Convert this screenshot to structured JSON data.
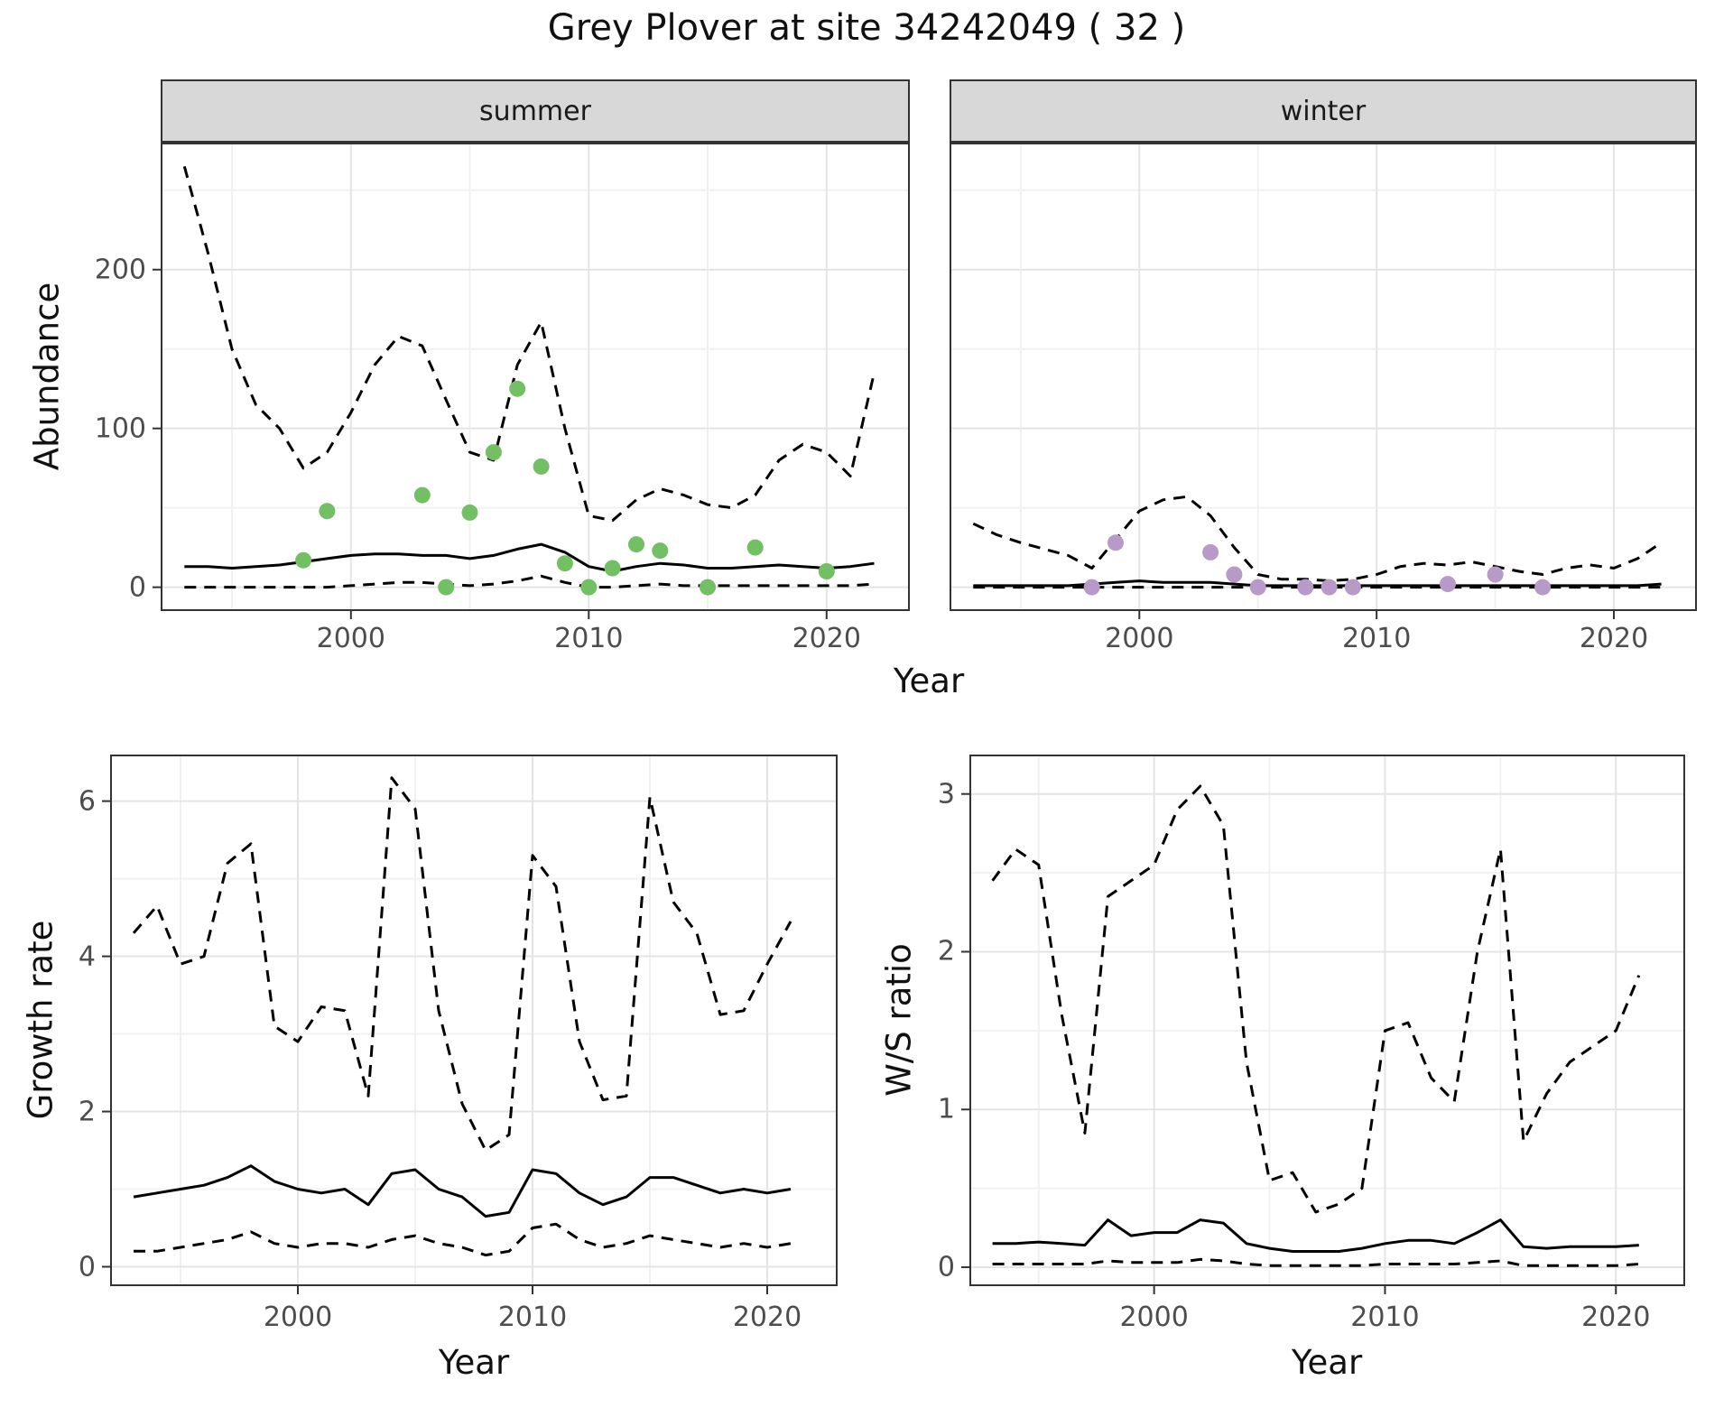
{
  "title": "Grey Plover at site 34242049 ( 32 )",
  "colors": {
    "line": "#000000",
    "summer_points": "#73bf63",
    "winter_points": "#b79ac8",
    "strip_bg": "#d8d8d8",
    "grid_major": "#e4e4e4",
    "grid_minor": "#f1f1f1",
    "panel_border": "#333333"
  },
  "chart_data": [
    {
      "id": "abundance_summer",
      "type": "line",
      "facet": "summer",
      "xlabel": "Year",
      "ylabel": "Abundance",
      "xlim": [
        1992,
        2023.5
      ],
      "ylim": [
        -15,
        280
      ],
      "xticks": [
        2000,
        2010,
        2020
      ],
      "yticks": [
        0,
        100,
        200
      ],
      "xminor": [
        1995,
        2005,
        2015
      ],
      "yminor": [
        50,
        150,
        250
      ],
      "series": [
        {
          "name": "upper_ci",
          "style": "dashed",
          "color": "#000000",
          "x": [
            1993,
            1994,
            1995,
            1996,
            1997,
            1998,
            1999,
            2000,
            2001,
            2002,
            2003,
            2004,
            2005,
            2006,
            2007,
            2008,
            2009,
            2010,
            2011,
            2012,
            2013,
            2014,
            2015,
            2016,
            2017,
            2018,
            2019,
            2020,
            2021,
            2022
          ],
          "y": [
            265,
            210,
            150,
            115,
            100,
            75,
            85,
            110,
            140,
            158,
            152,
            118,
            85,
            80,
            140,
            167,
            100,
            45,
            42,
            55,
            62,
            58,
            52,
            50,
            58,
            80,
            90,
            85,
            70,
            135
          ]
        },
        {
          "name": "mean",
          "style": "solid",
          "color": "#000000",
          "x": [
            1993,
            1994,
            1995,
            1996,
            1997,
            1998,
            1999,
            2000,
            2001,
            2002,
            2003,
            2004,
            2005,
            2006,
            2007,
            2008,
            2009,
            2010,
            2011,
            2012,
            2013,
            2014,
            2015,
            2016,
            2017,
            2018,
            2019,
            2020,
            2021,
            2022
          ],
          "y": [
            13,
            13,
            12,
            13,
            14,
            16,
            18,
            20,
            21,
            21,
            20,
            20,
            18,
            20,
            24,
            27,
            22,
            13,
            10,
            13,
            15,
            14,
            12,
            12,
            13,
            14,
            13,
            12,
            13,
            15
          ]
        },
        {
          "name": "lower_ci",
          "style": "dashed",
          "color": "#000000",
          "x": [
            1993,
            1994,
            1995,
            1996,
            1997,
            1998,
            1999,
            2000,
            2001,
            2002,
            2003,
            2004,
            2005,
            2006,
            2007,
            2008,
            2009,
            2010,
            2011,
            2012,
            2013,
            2014,
            2015,
            2016,
            2017,
            2018,
            2019,
            2020,
            2021,
            2022
          ],
          "y": [
            0,
            0,
            0,
            0,
            0,
            0,
            0,
            1,
            2,
            3,
            3,
            2,
            1,
            2,
            4,
            7,
            3,
            0,
            0,
            1,
            2,
            1,
            1,
            1,
            1,
            1,
            1,
            1,
            1,
            2
          ]
        },
        {
          "name": "observations",
          "style": "points",
          "color": "#73bf63",
          "x": [
            1998,
            1999,
            2003,
            2004,
            2005,
            2006,
            2007,
            2008,
            2009,
            2010,
            2011,
            2012,
            2013,
            2015,
            2017,
            2020
          ],
          "y": [
            17,
            48,
            58,
            0,
            47,
            85,
            125,
            76,
            15,
            0,
            12,
            27,
            23,
            0,
            25,
            10
          ]
        }
      ]
    },
    {
      "id": "abundance_winter",
      "type": "line",
      "facet": "winter",
      "xlabel": "Year",
      "ylabel": "Abundance",
      "xlim": [
        1992,
        2023.5
      ],
      "ylim": [
        -15,
        280
      ],
      "xticks": [
        2000,
        2010,
        2020
      ],
      "yticks": [
        0,
        100,
        200
      ],
      "xminor": [
        1995,
        2005,
        2015
      ],
      "yminor": [
        50,
        150,
        250
      ],
      "series": [
        {
          "name": "upper_ci",
          "style": "dashed",
          "color": "#000000",
          "x": [
            1993,
            1994,
            1995,
            1996,
            1997,
            1998,
            1999,
            2000,
            2001,
            2002,
            2003,
            2004,
            2005,
            2006,
            2007,
            2008,
            2009,
            2010,
            2011,
            2012,
            2013,
            2014,
            2015,
            2016,
            2017,
            2018,
            2019,
            2020,
            2021,
            2022
          ],
          "y": [
            40,
            33,
            28,
            24,
            20,
            12,
            30,
            48,
            55,
            57,
            45,
            25,
            8,
            5,
            5,
            4,
            5,
            8,
            13,
            15,
            14,
            16,
            13,
            10,
            8,
            12,
            14,
            12,
            18,
            28
          ]
        },
        {
          "name": "mean",
          "style": "solid",
          "color": "#000000",
          "x": [
            1993,
            1994,
            1995,
            1996,
            1997,
            1998,
            1999,
            2000,
            2001,
            2002,
            2003,
            2004,
            2005,
            2006,
            2007,
            2008,
            2009,
            2010,
            2011,
            2012,
            2013,
            2014,
            2015,
            2016,
            2017,
            2018,
            2019,
            2020,
            2021,
            2022
          ],
          "y": [
            1,
            1,
            1,
            1,
            1,
            2,
            3,
            4,
            3,
            3,
            3,
            2,
            1,
            1,
            1,
            1,
            1,
            1,
            1,
            1,
            1,
            1,
            1,
            1,
            1,
            1,
            1,
            1,
            1,
            2
          ]
        },
        {
          "name": "lower_ci",
          "style": "dashed",
          "color": "#000000",
          "x": [
            1993,
            1994,
            1995,
            1996,
            1997,
            1998,
            1999,
            2000,
            2001,
            2002,
            2003,
            2004,
            2005,
            2006,
            2007,
            2008,
            2009,
            2010,
            2011,
            2012,
            2013,
            2014,
            2015,
            2016,
            2017,
            2018,
            2019,
            2020,
            2021,
            2022
          ],
          "y": [
            0,
            0,
            0,
            0,
            0,
            0,
            0,
            0,
            0,
            0,
            0,
            0,
            0,
            0,
            0,
            0,
            0,
            0,
            0,
            0,
            0,
            0,
            0,
            0,
            0,
            0,
            0,
            0,
            0,
            0
          ]
        },
        {
          "name": "observations",
          "style": "points",
          "color": "#b79ac8",
          "x": [
            1998,
            1999,
            2003,
            2004,
            2005,
            2007,
            2008,
            2009,
            2013,
            2015,
            2017
          ],
          "y": [
            0,
            28,
            22,
            8,
            0,
            0,
            0,
            0,
            2,
            8,
            0
          ]
        }
      ]
    },
    {
      "id": "growth_rate",
      "type": "line",
      "xlabel": "Year",
      "ylabel": "Growth rate",
      "xlim": [
        1992,
        2023
      ],
      "ylim": [
        -0.25,
        6.6
      ],
      "xticks": [
        2000,
        2010,
        2020
      ],
      "yticks": [
        0,
        2,
        4,
        6
      ],
      "xminor": [
        1995,
        2005,
        2015
      ],
      "yminor": [
        1,
        3,
        5
      ],
      "series": [
        {
          "name": "upper_ci",
          "style": "dashed",
          "color": "#000000",
          "x": [
            1993,
            1994,
            1995,
            1996,
            1997,
            1998,
            1999,
            2000,
            2001,
            2002,
            2003,
            2004,
            2005,
            2006,
            2007,
            2008,
            2009,
            2010,
            2011,
            2012,
            2013,
            2014,
            2015,
            2016,
            2017,
            2018,
            2019,
            2020,
            2021
          ],
          "y": [
            4.3,
            4.65,
            3.9,
            4.0,
            5.2,
            5.45,
            3.1,
            2.9,
            3.35,
            3.3,
            2.2,
            6.3,
            5.9,
            3.3,
            2.1,
            1.5,
            1.7,
            5.3,
            4.9,
            2.9,
            2.15,
            2.2,
            6.05,
            4.7,
            4.3,
            3.25,
            3.3,
            3.9,
            4.45
          ]
        },
        {
          "name": "mean",
          "style": "solid",
          "color": "#000000",
          "x": [
            1993,
            1994,
            1995,
            1996,
            1997,
            1998,
            1999,
            2000,
            2001,
            2002,
            2003,
            2004,
            2005,
            2006,
            2007,
            2008,
            2009,
            2010,
            2011,
            2012,
            2013,
            2014,
            2015,
            2016,
            2017,
            2018,
            2019,
            2020,
            2021
          ],
          "y": [
            0.9,
            0.95,
            1.0,
            1.05,
            1.15,
            1.3,
            1.1,
            1.0,
            0.95,
            1.0,
            0.8,
            1.2,
            1.25,
            1.0,
            0.9,
            0.65,
            0.7,
            1.25,
            1.2,
            0.95,
            0.8,
            0.9,
            1.15,
            1.15,
            1.05,
            0.95,
            1.0,
            0.95,
            1.0
          ]
        },
        {
          "name": "lower_ci",
          "style": "dashed",
          "color": "#000000",
          "x": [
            1993,
            1994,
            1995,
            1996,
            1997,
            1998,
            1999,
            2000,
            2001,
            2002,
            2003,
            2004,
            2005,
            2006,
            2007,
            2008,
            2009,
            2010,
            2011,
            2012,
            2013,
            2014,
            2015,
            2016,
            2017,
            2018,
            2019,
            2020,
            2021
          ],
          "y": [
            0.2,
            0.2,
            0.25,
            0.3,
            0.35,
            0.45,
            0.3,
            0.25,
            0.3,
            0.3,
            0.25,
            0.35,
            0.4,
            0.3,
            0.25,
            0.15,
            0.2,
            0.5,
            0.55,
            0.35,
            0.25,
            0.3,
            0.4,
            0.35,
            0.3,
            0.25,
            0.3,
            0.25,
            0.3
          ]
        }
      ]
    },
    {
      "id": "ws_ratio",
      "type": "line",
      "xlabel": "Year",
      "ylabel": "W/S ratio",
      "xlim": [
        1992,
        2023
      ],
      "ylim": [
        -0.12,
        3.25
      ],
      "xticks": [
        2000,
        2010,
        2020
      ],
      "yticks": [
        0,
        1,
        2,
        3
      ],
      "xminor": [
        1995,
        2005,
        2015
      ],
      "yminor": [
        0.5,
        1.5,
        2.5
      ],
      "series": [
        {
          "name": "upper_ci",
          "style": "dashed",
          "color": "#000000",
          "x": [
            1993,
            1994,
            1995,
            1996,
            1997,
            1998,
            1999,
            2000,
            2001,
            2002,
            2003,
            2004,
            2005,
            2006,
            2007,
            2008,
            2009,
            2010,
            2011,
            2012,
            2013,
            2014,
            2015,
            2016,
            2017,
            2018,
            2019,
            2020,
            2021
          ],
          "y": [
            2.45,
            2.65,
            2.55,
            1.6,
            0.85,
            2.35,
            2.45,
            2.55,
            2.9,
            3.05,
            2.8,
            1.3,
            0.55,
            0.6,
            0.35,
            0.4,
            0.5,
            1.5,
            1.55,
            1.2,
            1.05,
            2.0,
            2.65,
            0.8,
            1.1,
            1.3,
            1.4,
            1.5,
            1.85
          ]
        },
        {
          "name": "mean",
          "style": "solid",
          "color": "#000000",
          "x": [
            1993,
            1994,
            1995,
            1996,
            1997,
            1998,
            1999,
            2000,
            2001,
            2002,
            2003,
            2004,
            2005,
            2006,
            2007,
            2008,
            2009,
            2010,
            2011,
            2012,
            2013,
            2014,
            2015,
            2016,
            2017,
            2018,
            2019,
            2020,
            2021
          ],
          "y": [
            0.15,
            0.15,
            0.16,
            0.15,
            0.14,
            0.3,
            0.2,
            0.22,
            0.22,
            0.3,
            0.28,
            0.15,
            0.12,
            0.1,
            0.1,
            0.1,
            0.12,
            0.15,
            0.17,
            0.17,
            0.15,
            0.22,
            0.3,
            0.13,
            0.12,
            0.13,
            0.13,
            0.13,
            0.14
          ]
        },
        {
          "name": "lower_ci",
          "style": "dashed",
          "color": "#000000",
          "x": [
            1993,
            1994,
            1995,
            1996,
            1997,
            1998,
            1999,
            2000,
            2001,
            2002,
            2003,
            2004,
            2005,
            2006,
            2007,
            2008,
            2009,
            2010,
            2011,
            2012,
            2013,
            2014,
            2015,
            2016,
            2017,
            2018,
            2019,
            2020,
            2021
          ],
          "y": [
            0.02,
            0.02,
            0.02,
            0.02,
            0.02,
            0.04,
            0.03,
            0.03,
            0.03,
            0.05,
            0.04,
            0.02,
            0.01,
            0.01,
            0.01,
            0.01,
            0.01,
            0.02,
            0.02,
            0.02,
            0.02,
            0.03,
            0.04,
            0.01,
            0.01,
            0.01,
            0.01,
            0.01,
            0.02
          ]
        }
      ]
    }
  ]
}
